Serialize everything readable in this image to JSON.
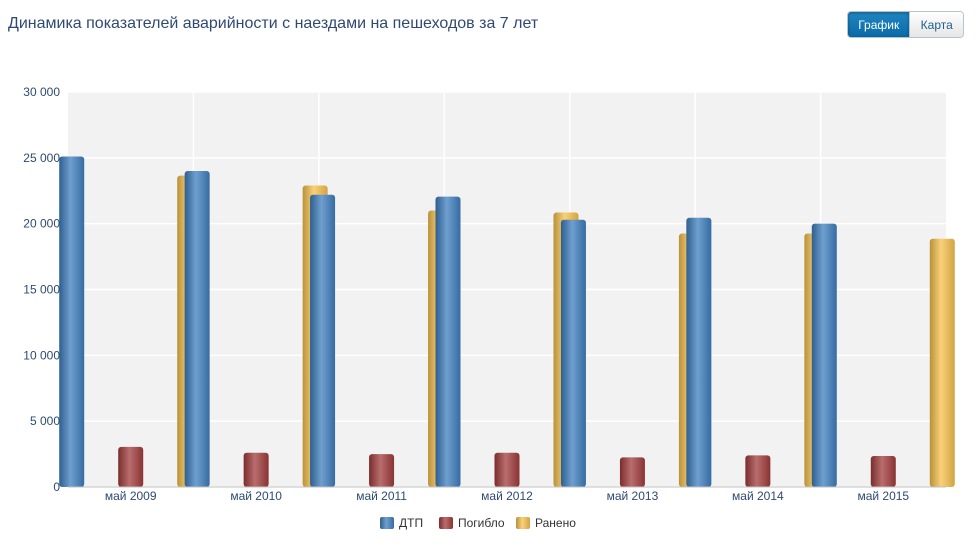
{
  "header": {
    "title": "Динамика показателей аварийности с наездами на пешеходов за 7 лет"
  },
  "view_toggle": {
    "chart_label": "График",
    "map_label": "Карта",
    "active": "chart"
  },
  "colors": {
    "dtp": "#3f7fbf",
    "killed": "#a23c3c",
    "injured": "#f7c14d"
  },
  "chart_data": {
    "type": "bar",
    "categories": [
      "май 2009",
      "май 2010",
      "май 2011",
      "май 2012",
      "май 2013",
      "май 2014",
      "май 2015"
    ],
    "series": [
      {
        "name": "ДТП",
        "values": [
          25100,
          24000,
          22200,
          22050,
          20300,
          20450,
          20000
        ]
      },
      {
        "name": "Погибло",
        "values": [
          3050,
          2600,
          2500,
          2600,
          2250,
          2400,
          2350
        ]
      },
      {
        "name": "Ранено",
        "values": [
          23650,
          22900,
          21000,
          20850,
          19250,
          19250,
          18850
        ]
      }
    ],
    "ylim": [
      0,
      30000
    ],
    "yticks": [
      0,
      5000,
      10000,
      15000,
      20000,
      25000,
      30000
    ],
    "ytick_labels": [
      "0",
      "5 000",
      "10 000",
      "15 000",
      "20 000",
      "25 000",
      "30 000"
    ],
    "grid": true,
    "legend_position": "bottom"
  }
}
